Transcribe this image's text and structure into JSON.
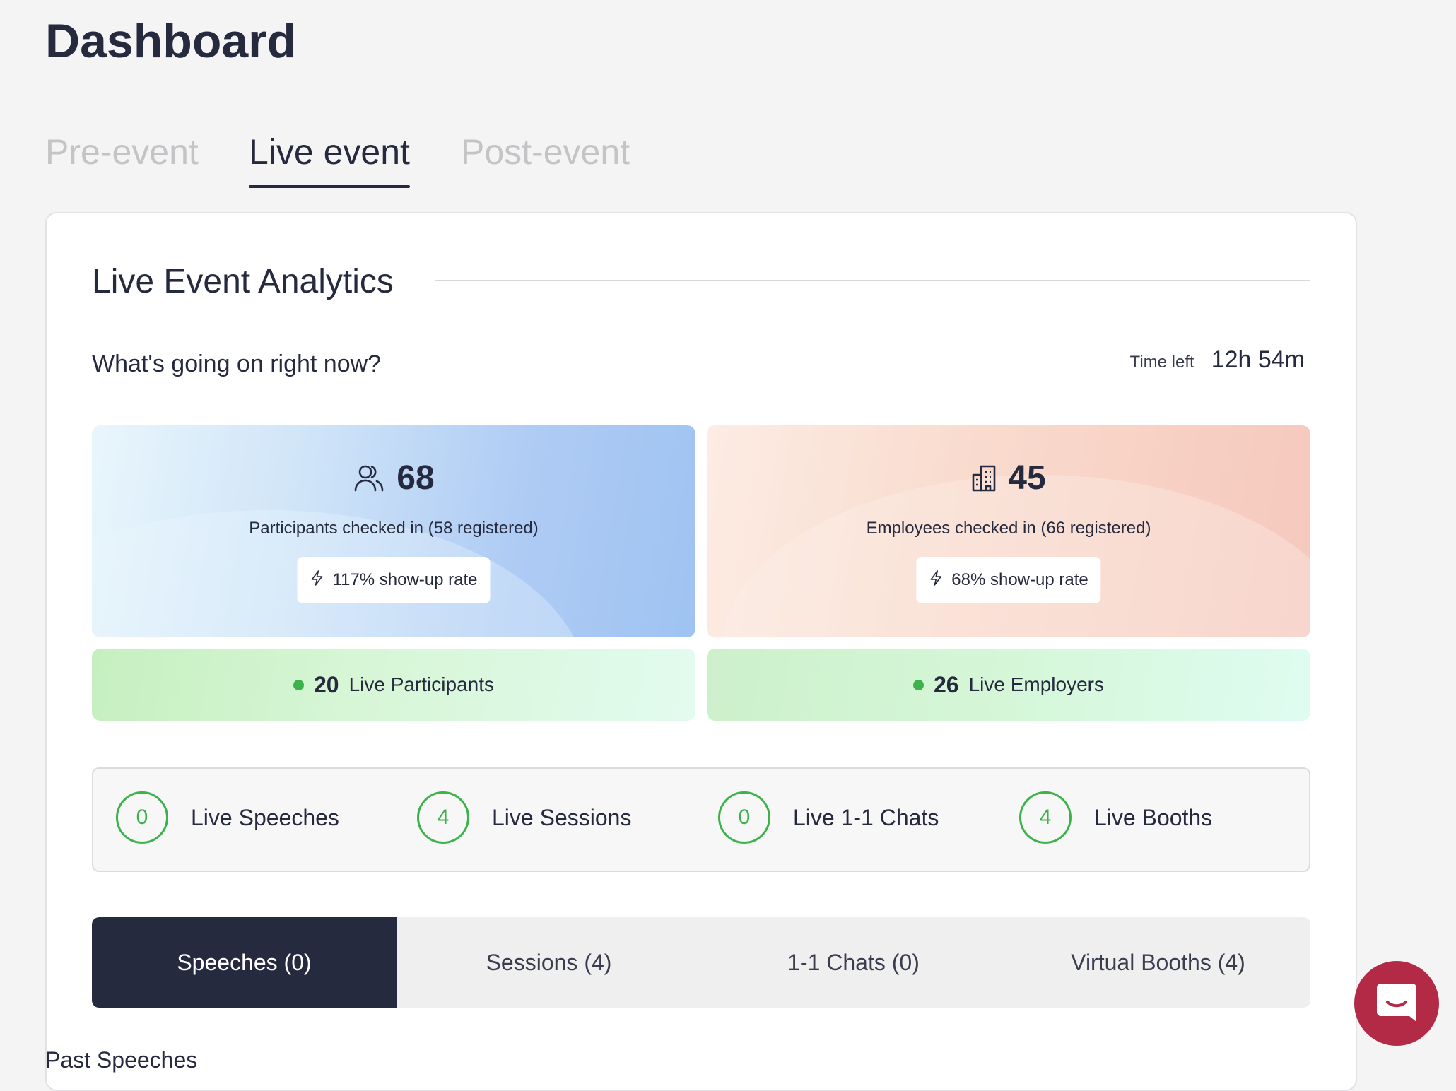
{
  "page": {
    "title": "Dashboard"
  },
  "tabs": [
    {
      "label": "Pre-event",
      "active": false
    },
    {
      "label": "Live event",
      "active": true
    },
    {
      "label": "Post-event",
      "active": false
    }
  ],
  "analytics": {
    "title": "Live Event Analytics",
    "question": "What's going on right now?",
    "time_left_label": "Time left",
    "time_left_value": "12h 54m"
  },
  "stats": {
    "participants": {
      "icon": "users-icon",
      "count": "68",
      "description": "Participants checked in (58 registered)",
      "rate_icon": "lightning-icon",
      "rate": "117% show-up rate"
    },
    "employees": {
      "icon": "building-icon",
      "count": "45",
      "description": "Employees checked in (66 registered)",
      "rate_icon": "lightning-icon",
      "rate": "68% show-up rate"
    }
  },
  "live": {
    "participants": {
      "count": "20",
      "label": "Live Participants"
    },
    "employers": {
      "count": "26",
      "label": "Live Employers"
    }
  },
  "counters": [
    {
      "value": "0",
      "label": "Live Speeches"
    },
    {
      "value": "4",
      "label": "Live Sessions"
    },
    {
      "value": "0",
      "label": "Live 1-1 Chats"
    },
    {
      "value": "4",
      "label": "Live Booths"
    }
  ],
  "subtabs": [
    {
      "label": "Speeches (0)",
      "active": true
    },
    {
      "label": "Sessions (4)",
      "active": false
    },
    {
      "label": "1-1 Chats (0)",
      "active": false
    },
    {
      "label": "Virtual Booths (4)",
      "active": false
    }
  ],
  "cropped_heading": "Past Speeches",
  "colors": {
    "primary": "#262a3e",
    "live_green": "#3cb34a",
    "chat_button": "#b22a45",
    "inactive_tab": "#c4c4c7"
  },
  "chat_widget": {
    "icon": "chat-bubble-icon"
  }
}
